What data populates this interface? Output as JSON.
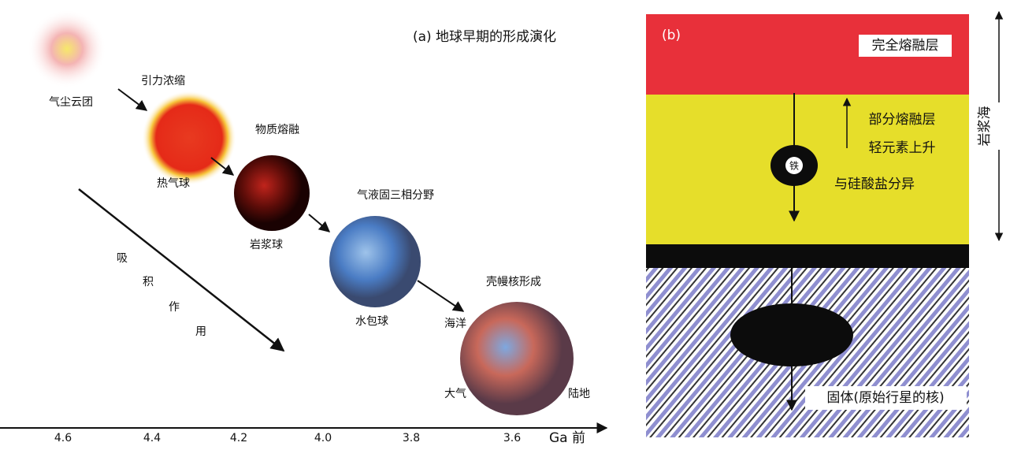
{
  "panel_a": {
    "title": "(a) 地球早期的形成演化",
    "stages": [
      "气尘云团",
      "热气球",
      "岩浆球",
      "水包球"
    ],
    "processes": [
      "引力浓缩",
      "物质熔融",
      "气液固三相分野",
      "壳幔核形成"
    ],
    "accretion": [
      "吸",
      "积",
      "作",
      "用"
    ],
    "earth_labels": [
      "海洋",
      "大气",
      "陆地"
    ],
    "axis": {
      "ticks": [
        "4.6",
        "4.4",
        "4.2",
        "4.0",
        "3.8",
        "3.6"
      ],
      "unit": "Ga 前"
    }
  },
  "panel_b": {
    "label": "(b)",
    "top_layer": "完全熔融层",
    "partial_layer": [
      "部分熔融层",
      "轻元素上升"
    ],
    "iron": "铁",
    "differentiation": "与硅酸盐分异",
    "core": "固体(原始行星的核)",
    "magma_ocean": "岩浆海"
  }
}
